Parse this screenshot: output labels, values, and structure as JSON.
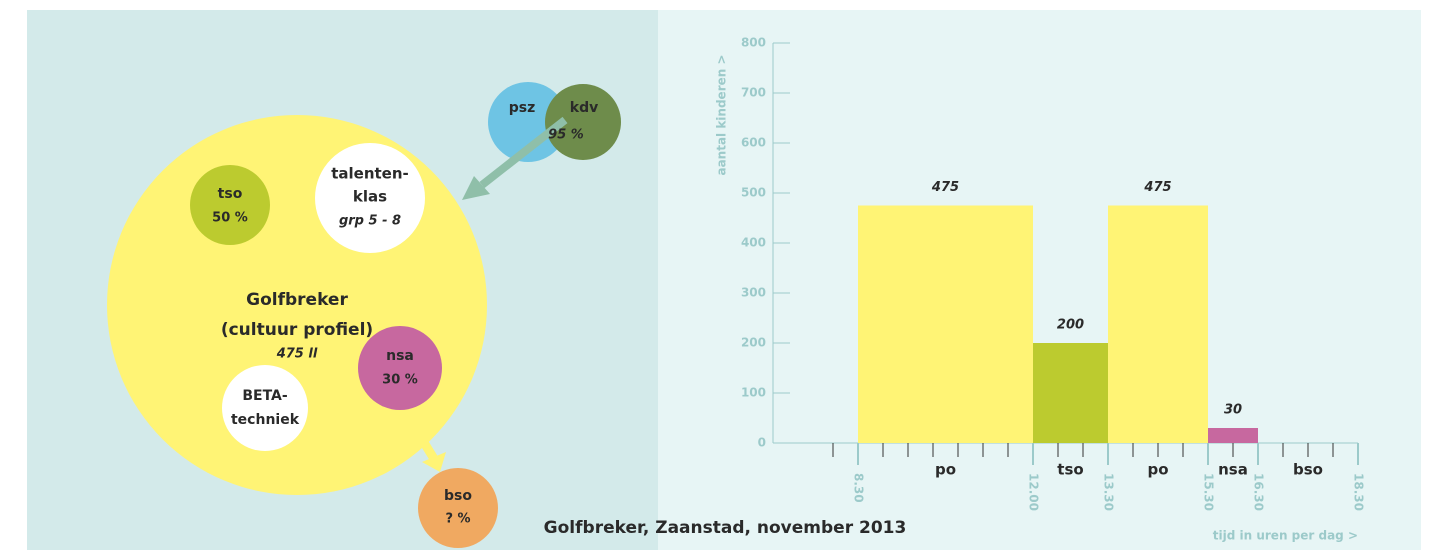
{
  "chart_data": {
    "type": "histogram",
    "y_label": "aantal kinderen >",
    "x_label": "tijd in uren per dag >",
    "bins": [
      8.5,
      12,
      13.5,
      15.5,
      16.5,
      18.5
    ],
    "categories": [
      "po",
      "tso",
      "po",
      "nsa",
      "bso"
    ],
    "values": [
      475,
      200,
      475,
      30,
      null
    ],
    "colors": [
      "#fff475",
      "#bccb2f",
      "#fff475",
      "#c7689f",
      "#fff475"
    ],
    "xlim": [
      7.5,
      18.5
    ],
    "xticks": [
      {
        "value": 8.5,
        "label": "8.30"
      },
      {
        "value": 12,
        "label": "12.00"
      },
      {
        "value": 13.5,
        "label": "13.30"
      },
      {
        "value": 15.5,
        "label": "15.30"
      },
      {
        "value": 16.5,
        "label": "16.30"
      },
      {
        "value": 18.5,
        "label": "18.30"
      }
    ],
    "xminorticks": [
      8,
      9,
      9.5,
      10,
      10.5,
      11,
      11.5,
      12.5,
      13,
      14,
      14.5,
      15,
      16,
      17,
      17.5,
      18
    ],
    "ylim": [
      0,
      800
    ],
    "yticks": [
      0,
      100,
      200,
      300,
      400,
      500,
      600,
      700,
      800
    ]
  },
  "diagram": {
    "caption": "Golfbreker, Zaanstad, november 2013",
    "nodes": [
      {
        "lines": [
          "Golfbreker",
          "(cultuur profiel)",
          "475 ll"
        ]
      },
      {
        "lines": [
          "tso",
          "50 %"
        ]
      },
      {
        "lines": [
          "talenten-",
          "klas",
          "grp 5 - 8"
        ]
      },
      {
        "lines": [
          "nsa",
          "30 %"
        ]
      },
      {
        "lines": [
          "BETA-",
          "techniek"
        ]
      },
      {
        "lines": [
          "bso",
          "? %"
        ]
      },
      {
        "lines": [
          "psz"
        ]
      },
      {
        "lines": [
          "kdv",
          "95 %"
        ]
      }
    ]
  }
}
